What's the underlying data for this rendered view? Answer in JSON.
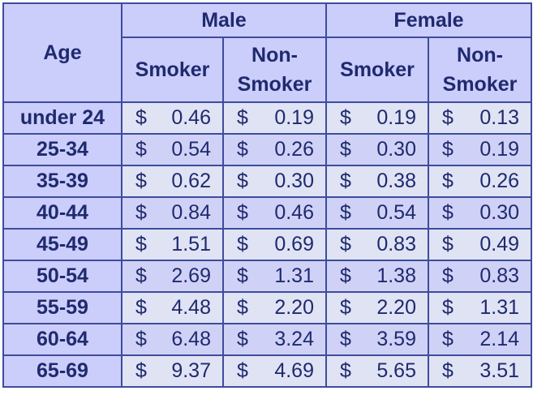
{
  "table": {
    "header": {
      "age": "Age",
      "groups": [
        "Male",
        "Female"
      ],
      "columns": [
        "Smoker",
        "Non-Smoker",
        "Smoker",
        "Non-Smoker"
      ]
    },
    "currency": "$",
    "rows": [
      [
        "under 24",
        "0.46",
        "0.19",
        "0.19",
        "0.13"
      ],
      [
        "25-34",
        "0.54",
        "0.26",
        "0.30",
        "0.19"
      ],
      [
        "35-39",
        "0.62",
        "0.30",
        "0.38",
        "0.26"
      ],
      [
        "40-44",
        "0.84",
        "0.46",
        "0.54",
        "0.30"
      ],
      [
        "45-49",
        "1.51",
        "0.69",
        "0.83",
        "0.49"
      ],
      [
        "50-54",
        "2.69",
        "1.31",
        "1.38",
        "0.83"
      ],
      [
        "55-59",
        "4.48",
        "2.20",
        "2.20",
        "1.31"
      ],
      [
        "60-64",
        "6.48",
        "3.24",
        "3.59",
        "2.14"
      ],
      [
        "65-69",
        "9.37",
        "4.69",
        "5.65",
        "3.51"
      ]
    ]
  }
}
